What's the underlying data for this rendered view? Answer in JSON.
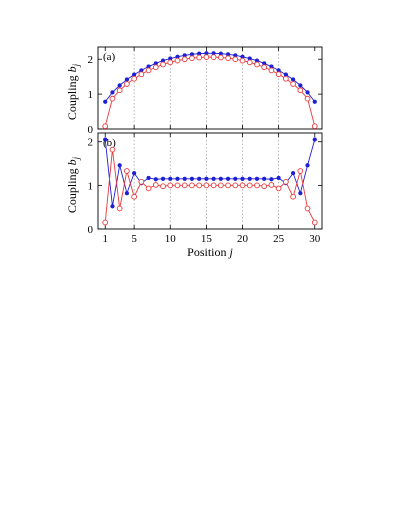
{
  "figure": {
    "xlabel_main": "Position ",
    "xlabel_var": "j",
    "ylabel_main": "Coupling ",
    "ylabel_var": "b",
    "ylabel_sub": "j"
  },
  "colors": {
    "series_a": "#1f1fd6",
    "series_b": "#e8393a"
  },
  "chart_data": [
    {
      "type": "line",
      "panel_label": "(a)",
      "xlabel": "Position j",
      "ylabel": "Coupling b_j",
      "x": [
        1,
        2,
        3,
        4,
        5,
        6,
        7,
        8,
        9,
        10,
        11,
        12,
        13,
        14,
        15,
        16,
        17,
        18,
        19,
        20,
        21,
        22,
        23,
        24,
        25,
        26,
        27,
        28,
        29,
        30
      ],
      "xlim": [
        0,
        31
      ],
      "ylim": [
        0,
        2.35
      ],
      "xticks": [
        1,
        5,
        10,
        15,
        20,
        25,
        30
      ],
      "yticks": [
        0,
        1,
        2
      ],
      "grid": "vertical dotted at x ticks",
      "series": [
        {
          "marker": "filled-dot",
          "color": "#1f1fd6",
          "values": [
            0.78,
            1.05,
            1.25,
            1.42,
            1.56,
            1.68,
            1.79,
            1.88,
            1.96,
            2.02,
            2.07,
            2.11,
            2.14,
            2.16,
            2.17,
            2.17,
            2.16,
            2.14,
            2.11,
            2.07,
            2.02,
            1.96,
            1.88,
            1.79,
            1.68,
            1.56,
            1.42,
            1.25,
            1.05,
            0.78
          ]
        },
        {
          "marker": "open-circle",
          "color": "#e8393a",
          "values": [
            0.08,
            0.87,
            1.11,
            1.29,
            1.44,
            1.57,
            1.68,
            1.77,
            1.85,
            1.91,
            1.96,
            2.0,
            2.03,
            2.05,
            2.06,
            2.06,
            2.05,
            2.03,
            2.0,
            1.96,
            1.91,
            1.85,
            1.77,
            1.68,
            1.57,
            1.44,
            1.29,
            1.11,
            0.87,
            0.08
          ]
        }
      ]
    },
    {
      "type": "line",
      "panel_label": "(b)",
      "xlabel": "Position j",
      "ylabel": "Coupling b_j",
      "x": [
        1,
        2,
        3,
        4,
        5,
        6,
        7,
        8,
        9,
        10,
        11,
        12,
        13,
        14,
        15,
        16,
        17,
        18,
        19,
        20,
        21,
        22,
        23,
        24,
        25,
        26,
        27,
        28,
        29,
        30
      ],
      "xlim": [
        0,
        31
      ],
      "ylim": [
        0,
        2.2
      ],
      "xticks": [
        1,
        5,
        10,
        15,
        20,
        25,
        30
      ],
      "yticks": [
        0,
        1,
        2
      ],
      "grid": "vertical dotted at x ticks",
      "series": [
        {
          "marker": "filled-dot",
          "color": "#1f1fd6",
          "values": [
            2.05,
            0.52,
            1.46,
            0.82,
            1.28,
            1.05,
            1.17,
            1.14,
            1.15,
            1.15,
            1.15,
            1.15,
            1.15,
            1.15,
            1.15,
            1.15,
            1.15,
            1.15,
            1.15,
            1.15,
            1.15,
            1.15,
            1.15,
            1.14,
            1.17,
            1.05,
            1.28,
            0.82,
            1.46,
            2.05
          ]
        },
        {
          "marker": "open-circle",
          "color": "#e8393a",
          "values": [
            0.15,
            1.82,
            0.47,
            1.33,
            0.74,
            1.08,
            0.93,
            1.01,
            0.98,
            1.0,
            1.0,
            1.0,
            1.0,
            1.0,
            1.0,
            1.0,
            1.0,
            1.0,
            1.0,
            1.0,
            1.0,
            1.0,
            0.98,
            1.01,
            0.93,
            1.08,
            0.74,
            1.33,
            0.47,
            0.15
          ]
        }
      ]
    }
  ]
}
